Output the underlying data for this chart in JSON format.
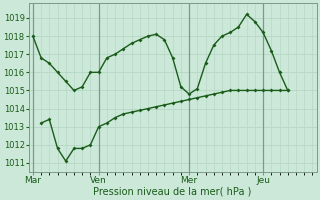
{
  "xlabel": "Pression niveau de la mer( hPa )",
  "bg_color": "#cce8d8",
  "grid_color": "#b8d8c8",
  "line_color": "#1a5c1a",
  "vline_color": "#7a9a8a",
  "xtick_labels": [
    "Mar",
    "Ven",
    "Mer",
    "Jeu"
  ],
  "xtick_positions": [
    0,
    8,
    19,
    28
  ],
  "vline_positions": [
    0,
    8,
    19,
    28
  ],
  "ylim": [
    1010.5,
    1019.8
  ],
  "yticks": [
    1011,
    1012,
    1013,
    1014,
    1015,
    1016,
    1017,
    1018,
    1019
  ],
  "xlim": [
    -0.5,
    34.5
  ],
  "line1_x": [
    0,
    1,
    2,
    3,
    4,
    5,
    6,
    7,
    8,
    9,
    10,
    11,
    12,
    13,
    14,
    15,
    16,
    17,
    18,
    19,
    20,
    21,
    22,
    23,
    24,
    25,
    26,
    27,
    28,
    29,
    30,
    31
  ],
  "line1_y": [
    1018.0,
    1016.8,
    1016.5,
    1016.0,
    1015.5,
    1015.0,
    1015.2,
    1016.0,
    1016.0,
    1016.8,
    1017.0,
    1017.3,
    1017.6,
    1017.8,
    1018.0,
    1018.1,
    1017.8,
    1016.8,
    1015.2,
    1014.8,
    1015.1,
    1016.5,
    1017.5,
    1018.0,
    1018.2,
    1018.5,
    1019.2,
    1018.8,
    1018.2,
    1017.2,
    1016.0,
    1015.0
  ],
  "line2_x": [
    1,
    2,
    3,
    4,
    5,
    6,
    7,
    8,
    9,
    10,
    11,
    12,
    13,
    14,
    15,
    16,
    17,
    18,
    19,
    20,
    21,
    22,
    23,
    24,
    25,
    26,
    27,
    28,
    29,
    30,
    31
  ],
  "line2_y": [
    1013.2,
    1013.4,
    1011.8,
    1011.1,
    1011.8,
    1011.8,
    1012.0,
    1013.0,
    1013.2,
    1013.5,
    1013.7,
    1013.8,
    1013.9,
    1014.0,
    1014.1,
    1014.2,
    1014.3,
    1014.4,
    1014.5,
    1014.6,
    1014.7,
    1014.8,
    1014.9,
    1015.0,
    1015.0,
    1015.0,
    1015.0,
    1015.0,
    1015.0,
    1015.0,
    1015.0
  ]
}
